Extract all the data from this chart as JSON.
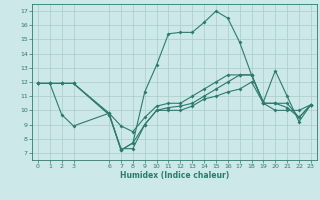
{
  "xlabel": "Humidex (Indice chaleur)",
  "background_color": "#cce8e8",
  "grid_color": "#aacccc",
  "line_color": "#2d7a6e",
  "xlim": [
    -0.5,
    23.5
  ],
  "ylim": [
    6.5,
    17.5
  ],
  "xticks": [
    0,
    1,
    2,
    3,
    6,
    7,
    8,
    9,
    10,
    11,
    12,
    13,
    14,
    15,
    16,
    17,
    18,
    19,
    20,
    21,
    22,
    23
  ],
  "yticks": [
    7,
    8,
    9,
    10,
    11,
    12,
    13,
    14,
    15,
    16,
    17
  ],
  "line1_x": [
    0,
    1,
    2,
    3,
    6,
    7,
    8,
    9,
    10,
    11,
    12,
    13,
    14,
    15,
    16,
    17,
    18,
    19,
    20,
    21,
    22,
    23
  ],
  "line1_y": [
    11.9,
    11.9,
    11.9,
    11.9,
    9.7,
    7.2,
    7.7,
    11.3,
    13.2,
    15.4,
    15.5,
    15.5,
    16.2,
    17.0,
    16.5,
    14.8,
    12.5,
    10.6,
    12.8,
    11.0,
    9.2,
    10.4
  ],
  "line2_x": [
    0,
    1,
    2,
    3,
    6,
    7,
    8,
    9,
    10,
    11,
    12,
    13,
    14,
    15,
    16,
    17,
    18,
    19,
    20,
    21,
    22,
    23
  ],
  "line2_y": [
    11.9,
    11.9,
    11.9,
    11.9,
    9.8,
    8.9,
    8.5,
    9.5,
    10.3,
    10.5,
    10.5,
    11.0,
    11.5,
    12.0,
    12.5,
    12.5,
    12.5,
    10.5,
    10.5,
    10.5,
    9.5,
    10.4
  ],
  "line3_x": [
    0,
    1,
    2,
    3,
    6,
    7,
    8,
    9,
    10,
    11,
    12,
    13,
    14,
    15,
    16,
    17,
    18,
    19,
    20,
    21,
    22,
    23
  ],
  "line3_y": [
    11.9,
    11.9,
    11.9,
    11.9,
    9.7,
    7.3,
    7.3,
    9.0,
    10.0,
    10.2,
    10.3,
    10.5,
    11.0,
    11.5,
    12.0,
    12.5,
    12.5,
    10.5,
    10.5,
    10.2,
    9.5,
    10.4
  ],
  "line4_x": [
    0,
    1,
    2,
    3,
    6,
    7,
    8,
    9,
    10,
    11,
    12,
    13,
    14,
    15,
    16,
    17,
    18,
    19,
    20,
    21,
    22,
    23
  ],
  "line4_y": [
    11.9,
    11.9,
    9.7,
    8.9,
    9.8,
    7.2,
    7.7,
    9.0,
    10.0,
    10.0,
    10.0,
    10.3,
    10.8,
    11.0,
    11.3,
    11.5,
    12.0,
    10.5,
    10.0,
    10.0,
    10.0,
    10.4
  ]
}
